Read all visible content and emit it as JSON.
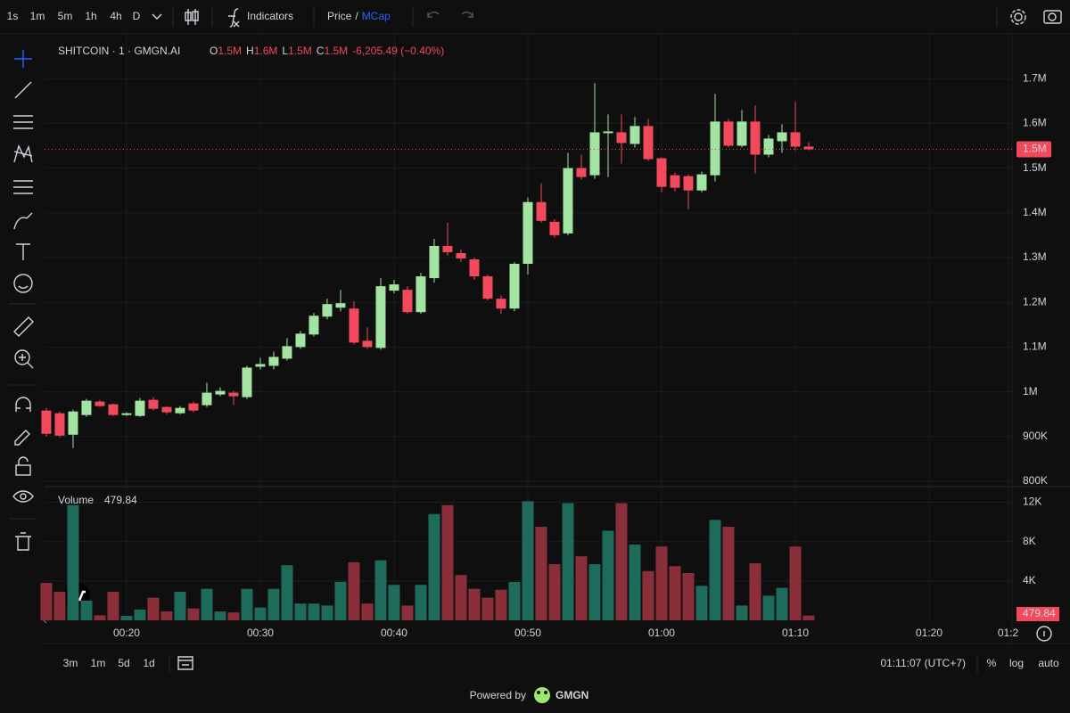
{
  "toolbar": {
    "intervals": [
      "1s",
      "1m",
      "5m",
      "1h",
      "4h",
      "D"
    ],
    "active_interval": "1m",
    "indicators": "Indicators",
    "price": "Price",
    "separator": "/",
    "mcap": "MCap"
  },
  "chart_data": {
    "type": "candlestick",
    "symbol": "SHITCOIN · 1 · GMGN.AI",
    "ohlc_legend": [
      {
        "key": "O",
        "value": "1.5M"
      },
      {
        "key": "H",
        "value": "1.6M"
      },
      {
        "key": "L",
        "value": "1.5M"
      },
      {
        "key": "C",
        "value": "1.5M"
      }
    ],
    "change": "-6,205.49 (−0.40%)",
    "x": [
      14,
      15,
      16,
      17,
      18,
      19,
      20,
      21,
      22,
      23,
      24,
      25,
      26,
      27,
      28,
      29,
      30,
      31,
      32,
      33,
      34,
      35,
      36,
      37,
      38,
      39,
      40,
      41,
      42,
      43,
      44,
      45,
      46,
      47,
      48,
      49,
      50,
      51,
      52,
      53,
      54,
      55,
      56,
      57,
      58,
      59,
      60,
      61,
      62,
      63,
      64,
      65,
      66,
      67,
      68,
      69,
      70,
      71
    ],
    "open": [
      958000,
      952000,
      904000,
      948000,
      978000,
      972000,
      948000,
      946000,
      982000,
      966000,
      952000,
      974000,
      970000,
      994000,
      998000,
      988000,
      1056000,
      1058000,
      1074000,
      1100000,
      1128000,
      1168000,
      1188000,
      1186000,
      1114000,
      1098000,
      1226000,
      1228000,
      1178000,
      1254000,
      1326000,
      1310000,
      1296000,
      1258000,
      1208000,
      1186000,
      1286000,
      1424000,
      1380000,
      1354000,
      1500000,
      1484000,
      1578000,
      1580000,
      1554000,
      1594000,
      1522000,
      1484000,
      1482000,
      1450000,
      1484000,
      1604000,
      1550000,
      1604000,
      1530000,
      1560000,
      1580000,
      1548000
    ],
    "high": [
      964000,
      956000,
      960000,
      984000,
      982000,
      974000,
      954000,
      986000,
      988000,
      968000,
      968000,
      978000,
      1020000,
      1010000,
      1002000,
      1058000,
      1076000,
      1090000,
      1120000,
      1136000,
      1176000,
      1208000,
      1228000,
      1202000,
      1144000,
      1254000,
      1250000,
      1236000,
      1266000,
      1342000,
      1378000,
      1318000,
      1300000,
      1262000,
      1216000,
      1290000,
      1434000,
      1466000,
      1386000,
      1534000,
      1530000,
      1690000,
      1620000,
      1620000,
      1614000,
      1610000,
      1524000,
      1490000,
      1486000,
      1492000,
      1666000,
      1610000,
      1630000,
      1640000,
      1574000,
      1598000,
      1648000,
      1558000
    ],
    "low": [
      900000,
      898000,
      874000,
      944000,
      966000,
      946000,
      946000,
      944000,
      958000,
      950000,
      950000,
      954000,
      966000,
      990000,
      970000,
      984000,
      1050000,
      1050000,
      1070000,
      1096000,
      1124000,
      1162000,
      1180000,
      1106000,
      1096000,
      1094000,
      1220000,
      1174000,
      1174000,
      1244000,
      1304000,
      1290000,
      1250000,
      1204000,
      1174000,
      1180000,
      1262000,
      1378000,
      1344000,
      1350000,
      1474000,
      1476000,
      1480000,
      1510000,
      1546000,
      1516000,
      1446000,
      1448000,
      1408000,
      1446000,
      1470000,
      1546000,
      1546000,
      1488000,
      1524000,
      1534000,
      1540000,
      1540000
    ],
    "close": [
      906000,
      902000,
      956000,
      980000,
      968000,
      948000,
      952000,
      980000,
      962000,
      954000,
      964000,
      958000,
      998000,
      1002000,
      990000,
      1054000,
      1062000,
      1078000,
      1102000,
      1130000,
      1170000,
      1196000,
      1198000,
      1110000,
      1100000,
      1236000,
      1240000,
      1178000,
      1258000,
      1326000,
      1312000,
      1298000,
      1258000,
      1208000,
      1186000,
      1286000,
      1424000,
      1382000,
      1350000,
      1500000,
      1480000,
      1580000,
      1582000,
      1556000,
      1594000,
      1520000,
      1458000,
      1456000,
      1450000,
      1486000,
      1604000,
      1550000,
      1604000,
      1530000,
      1566000,
      1580000,
      1548000,
      1542000
    ],
    "up_color": "#a3e4a2",
    "down_color": "#f2495c",
    "xlim": [
      13.87,
      86.2
    ],
    "xticks": [
      {
        "value": 20,
        "label": "00:20"
      },
      {
        "value": 30,
        "label": "00:30"
      },
      {
        "value": 40,
        "label": "00:40"
      },
      {
        "value": 50,
        "label": "00:50"
      },
      {
        "value": 60,
        "label": "01:00"
      },
      {
        "value": 70,
        "label": "01:10"
      },
      {
        "value": 80,
        "label": "01:20"
      },
      {
        "value": 85.9,
        "label": "01:2"
      }
    ],
    "ylim": [
      790000,
      1800000
    ],
    "yticks": [
      {
        "value": 800000,
        "label": "800K"
      },
      {
        "value": 900000,
        "label": "900K"
      },
      {
        "value": 1000000,
        "label": "1M"
      },
      {
        "value": 1100000,
        "label": "1.1M"
      },
      {
        "value": 1200000,
        "label": "1.2M"
      },
      {
        "value": 1300000,
        "label": "1.3M"
      },
      {
        "value": 1400000,
        "label": "1.4M"
      },
      {
        "value": 1500000,
        "label": "1.5M"
      },
      {
        "value": 1600000,
        "label": "1.6M"
      },
      {
        "value": 1700000,
        "label": "1.7M"
      }
    ],
    "grid": true,
    "last_price_label": "1.5M",
    "volume": {
      "name": "Volume",
      "values": [
        3800,
        2900,
        11700,
        2000,
        500,
        2900,
        450,
        1100,
        2300,
        900,
        2900,
        1200,
        3200,
        900,
        800,
        3200,
        1300,
        3200,
        5600,
        1700,
        1700,
        1500,
        3900,
        5900,
        1700,
        6100,
        3600,
        1500,
        3600,
        10800,
        11700,
        4600,
        3200,
        2300,
        3100,
        3900,
        12100,
        9500,
        5700,
        11900,
        6500,
        5700,
        9100,
        11900,
        7700,
        5000,
        7500,
        5500,
        4800,
        3500,
        10200,
        9500,
        1500,
        5800,
        2500,
        3300,
        7500,
        479.84
      ],
      "up_color": "#1f6b5b",
      "down_color": "#8a2f3a",
      "ylim": [
        0,
        13400
      ],
      "yticks": [
        {
          "value": 4000,
          "label": "4K"
        },
        {
          "value": 8000,
          "label": "8K"
        },
        {
          "value": 12000,
          "label": "12K"
        }
      ]
    }
  },
  "footer": {
    "ranges": [
      "3m",
      "1m",
      "5d",
      "1d"
    ],
    "clock": "01:11:07 (UTC+7)",
    "percent": "%",
    "log": "log",
    "auto": "auto",
    "powered_by": "Powered by",
    "brand": "GMGN"
  }
}
